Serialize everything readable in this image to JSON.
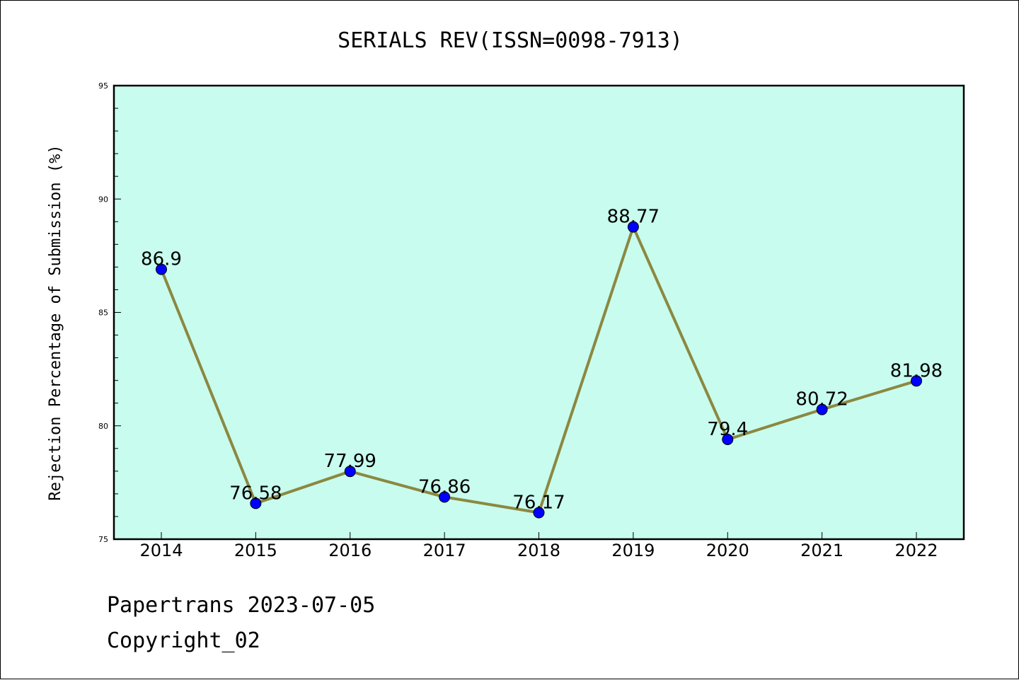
{
  "chart_data": {
    "type": "line",
    "title": "SERIALS REV(ISSN=0098-7913)",
    "ylabel": "Rejection Percentage of Submission (%)",
    "xlabel": "",
    "categories": [
      "2014",
      "2015",
      "2016",
      "2017",
      "2018",
      "2019",
      "2020",
      "2021",
      "2022"
    ],
    "series": [
      {
        "values": [
          86.9,
          76.58,
          77.99,
          76.86,
          76.17,
          88.77,
          79.4,
          80.72,
          81.98
        ],
        "labels": [
          "86.9",
          "76.58",
          "77.99",
          "76.86",
          "76.17",
          "88.77",
          "79.4",
          "80.72",
          "81.98"
        ]
      }
    ],
    "ylim": [
      75,
      95
    ],
    "yticks": [
      "75",
      "80",
      "85",
      "90",
      "95"
    ],
    "grid": false,
    "colors": {
      "plot_background": "#c8fcee",
      "line": "#8b8840",
      "marker": "#0000ff"
    }
  },
  "footer": {
    "line1": "Papertrans 2023-07-05",
    "line2": "Copyright_02"
  }
}
